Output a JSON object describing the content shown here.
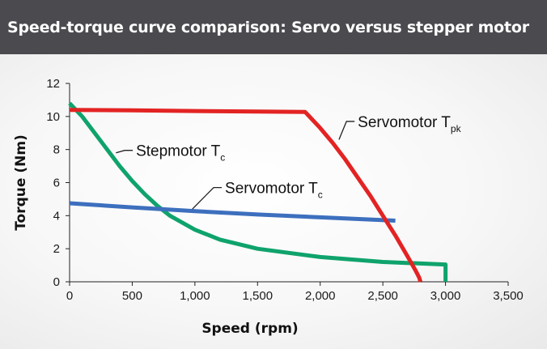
{
  "title": "Speed-torque curve comparison: Servo versus stepper motor",
  "colors": {
    "title_bg": "#4a4a4f",
    "title_text": "#ffffff",
    "servo_tpk": "#e32323",
    "stepmotor_tc": "#0fa36c",
    "servo_tc": "#3d6fbe"
  },
  "chart_data": {
    "type": "line",
    "xlabel": "Speed (rpm)",
    "ylabel": "Torque (Nm)",
    "xlim": [
      0,
      3500
    ],
    "ylim": [
      0,
      12
    ],
    "x_ticks": [
      0,
      500,
      1000,
      1500,
      2000,
      2500,
      3000,
      3500
    ],
    "x_tick_labels": [
      "0",
      "500",
      "1,000",
      "1,500",
      "2,000",
      "2,500",
      "3,000",
      "3,500"
    ],
    "y_ticks": [
      0,
      2,
      4,
      6,
      8,
      10,
      12
    ],
    "y_tick_labels": [
      "0",
      "2",
      "4",
      "6",
      "8",
      "10",
      "12"
    ],
    "grid": false,
    "series": [
      {
        "name": "Servomotor T",
        "subscript": "pk",
        "color_key": "servo_tpk",
        "points": [
          [
            0,
            10.4
          ],
          [
            500,
            10.37
          ],
          [
            1000,
            10.33
          ],
          [
            1500,
            10.3
          ],
          [
            1880,
            10.27
          ],
          [
            2000,
            9.3
          ],
          [
            2100,
            8.4
          ],
          [
            2200,
            7.4
          ],
          [
            2300,
            6.3
          ],
          [
            2400,
            5.2
          ],
          [
            2500,
            4.0
          ],
          [
            2600,
            2.8
          ],
          [
            2700,
            1.5
          ],
          [
            2760,
            0.7
          ],
          [
            2790,
            0.25
          ],
          [
            2800,
            0
          ]
        ],
        "label_anchor": [
          2150,
          8.6
        ],
        "label_pos": [
          2300,
          9.7
        ]
      },
      {
        "name": "Stepmotor T",
        "subscript": "c",
        "color_key": "stepmotor_tc",
        "points": [
          [
            0,
            10.8
          ],
          [
            100,
            10.0
          ],
          [
            200,
            9.0
          ],
          [
            300,
            8.0
          ],
          [
            400,
            7.0
          ],
          [
            500,
            6.1
          ],
          [
            600,
            5.3
          ],
          [
            700,
            4.6
          ],
          [
            800,
            4.0
          ],
          [
            1000,
            3.15
          ],
          [
            1200,
            2.55
          ],
          [
            1500,
            2.0
          ],
          [
            2000,
            1.5
          ],
          [
            2500,
            1.2
          ],
          [
            2990,
            1.05
          ],
          [
            3000,
            1.05
          ],
          [
            3000,
            0
          ]
        ],
        "label_anchor": [
          370,
          7.8
        ],
        "label_pos": [
          530,
          7.95
        ]
      },
      {
        "name": "Servomotor T",
        "subscript": "c",
        "color_key": "servo_tc",
        "points": [
          [
            0,
            4.75
          ],
          [
            500,
            4.5
          ],
          [
            1000,
            4.27
          ],
          [
            1500,
            4.07
          ],
          [
            2000,
            3.9
          ],
          [
            2600,
            3.7
          ]
        ],
        "label_anchor": [
          980,
          4.4
        ],
        "label_pos": [
          1240,
          5.7
        ]
      }
    ]
  }
}
